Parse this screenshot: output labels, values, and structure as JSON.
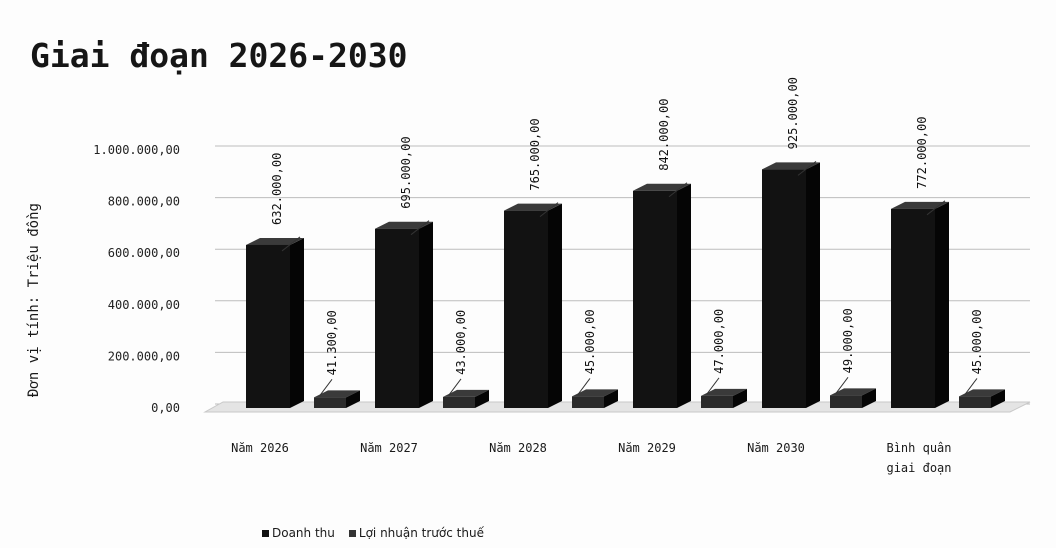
{
  "chart_data": {
    "type": "bar",
    "title": "Giai đoạn 2026-2030",
    "ylabel": "Đơn vị tính: Triệu đồng",
    "categories": [
      "Năm 2026",
      "Năm 2027",
      "Năm 2028",
      "Năm 2029",
      "Năm 2030",
      "Bình quân giai đoạn"
    ],
    "category_lines": [
      [
        "Năm 2026"
      ],
      [
        "Năm 2027"
      ],
      [
        "Năm 2028"
      ],
      [
        "Năm 2029"
      ],
      [
        "Năm 2030"
      ],
      [
        "Bình quân",
        "giai đoạn"
      ]
    ],
    "series": [
      {
        "name": "Doanh thu",
        "values": [
          632000,
          695000,
          765000,
          842000,
          925000,
          772000
        ],
        "labels": [
          "632.000,00",
          "695.000,00",
          "765.000,00",
          "842.000,00",
          "925.000,00",
          "772.000,00"
        ],
        "color": "#121212"
      },
      {
        "name": "Lợi nhuận trước thuế",
        "values": [
          41300,
          43000,
          45000,
          47000,
          49000,
          45000
        ],
        "labels": [
          "41.300,00",
          "43.000,00",
          "45.000,00",
          "47.000,00",
          "49.000,00",
          "45.000,00"
        ],
        "color": "#2a2a2a"
      }
    ],
    "yticks": [
      0,
      200000,
      400000,
      600000,
      800000,
      1000000
    ],
    "ytick_labels": [
      "0,00",
      "200.000,00",
      "400.000,00",
      "600.000,00",
      "800.000,00",
      "1.000.000,00"
    ],
    "ylim": [
      0,
      1000000
    ],
    "grid": true,
    "legend_position": "bottom",
    "style": "3d"
  }
}
